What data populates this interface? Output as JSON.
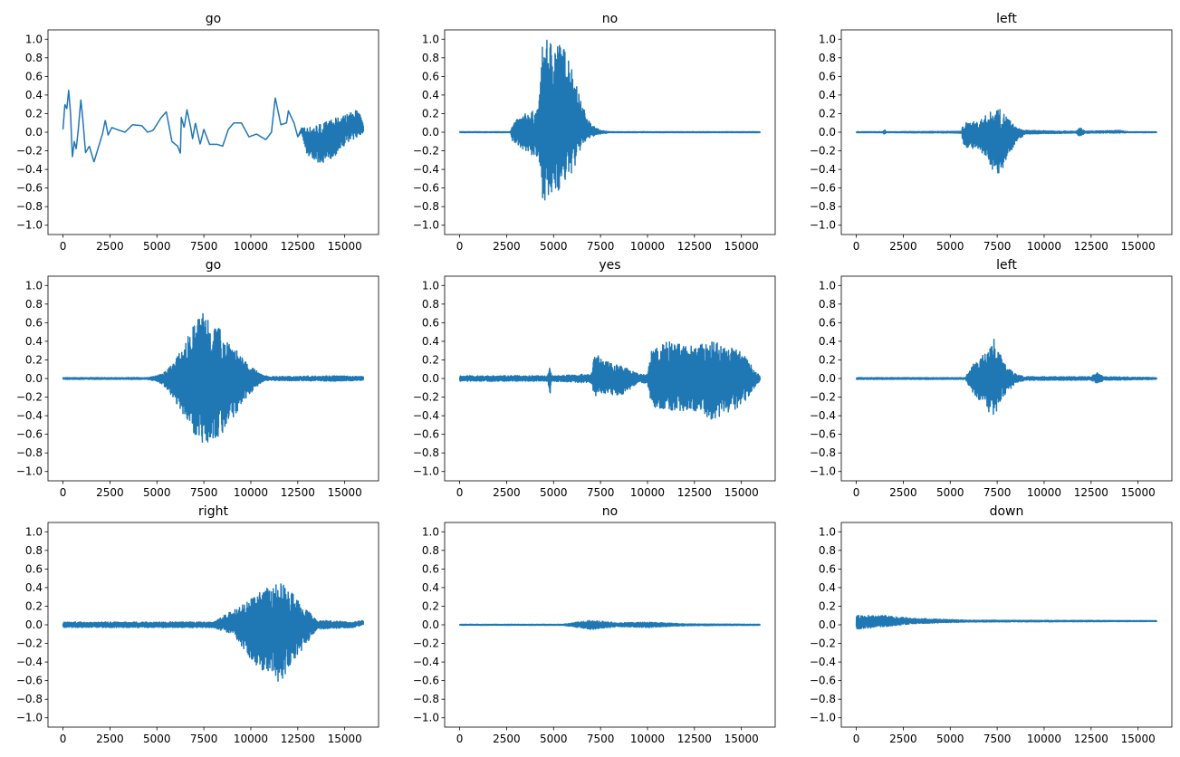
{
  "chart_data": [
    {
      "type": "line",
      "title": "go",
      "xlim": [
        -800,
        16800
      ],
      "ylim": [
        -1.1,
        1.1
      ],
      "grid": false,
      "color": "#1f77b4",
      "envelope": [
        [
          0,
          0.03,
          0.03
        ],
        [
          100,
          0.3,
          0.3
        ],
        [
          200,
          0.25,
          0.25
        ],
        [
          300,
          0.45,
          0.45
        ],
        [
          400,
          0.2,
          0.2
        ],
        [
          500,
          -0.27,
          -0.27
        ],
        [
          600,
          -0.1,
          -0.1
        ],
        [
          700,
          -0.18,
          -0.18
        ],
        [
          800,
          0,
          0
        ],
        [
          950,
          0.35,
          0.35
        ],
        [
          1050,
          0.15,
          0.15
        ],
        [
          1200,
          -0.22,
          -0.22
        ],
        [
          1400,
          -0.15,
          -0.15
        ],
        [
          1650,
          -0.32,
          -0.32
        ],
        [
          1900,
          -0.15,
          -0.15
        ],
        [
          2100,
          -0.02,
          -0.02
        ],
        [
          2250,
          0.13,
          0.13
        ],
        [
          2400,
          -0.03,
          -0.03
        ],
        [
          2600,
          0.05,
          0.05
        ],
        [
          3000,
          0.02,
          0.02
        ],
        [
          3300,
          0,
          0
        ],
        [
          3700,
          0.08,
          0.08
        ],
        [
          4200,
          0.07,
          0.07
        ],
        [
          4500,
          0,
          0
        ],
        [
          4800,
          0.02,
          0.02
        ],
        [
          5200,
          0.15,
          0.15
        ],
        [
          5500,
          0.22,
          0.22
        ],
        [
          5800,
          -0.1,
          -0.1
        ],
        [
          6100,
          -0.15,
          -0.15
        ],
        [
          6250,
          -0.23,
          -0.23
        ],
        [
          6300,
          0.16,
          0.16
        ],
        [
          6450,
          0.05,
          0.05
        ],
        [
          6600,
          0.24,
          0.24
        ],
        [
          6800,
          0.05,
          0.05
        ],
        [
          6900,
          -0.07,
          -0.07
        ],
        [
          7050,
          0.1,
          0.1
        ],
        [
          7300,
          -0.13,
          -0.13
        ],
        [
          7500,
          0.03,
          0.03
        ],
        [
          7800,
          -0.13,
          -0.13
        ],
        [
          8200,
          -0.13,
          -0.13
        ],
        [
          8500,
          -0.15,
          -0.15
        ],
        [
          8800,
          0.03,
          0.03
        ],
        [
          9100,
          0.1,
          0.1
        ],
        [
          9500,
          0.1,
          0.1
        ],
        [
          9900,
          -0.05,
          -0.05
        ],
        [
          10300,
          -0.02,
          -0.02
        ],
        [
          10800,
          -0.08,
          -0.08
        ],
        [
          11100,
          0,
          0
        ],
        [
          11300,
          0.37,
          0.37
        ],
        [
          11600,
          0.08,
          0.08
        ],
        [
          11900,
          0.1,
          0.1
        ],
        [
          12000,
          0.23,
          0.23
        ],
        [
          12300,
          0.1,
          0.1
        ],
        [
          12500,
          -0.05,
          -0.05
        ],
        [
          12700,
          0.05,
          0.0
        ],
        [
          13000,
          0.05,
          -0.25
        ],
        [
          13800,
          0.1,
          -0.35
        ],
        [
          14500,
          0.15,
          -0.25
        ],
        [
          15200,
          0.2,
          -0.1
        ],
        [
          15700,
          0.25,
          -0.05
        ],
        [
          16000,
          0.08,
          0.0
        ]
      ]
    },
    {
      "type": "line",
      "title": "no",
      "xlim": [
        -800,
        16800
      ],
      "ylim": [
        -1.1,
        1.1
      ],
      "grid": false,
      "color": "#1f77b4",
      "envelope": [
        [
          0,
          0.005,
          -0.005
        ],
        [
          2700,
          0.005,
          -0.005
        ],
        [
          2800,
          0.1,
          -0.1
        ],
        [
          3500,
          0.2,
          -0.2
        ],
        [
          4200,
          0.25,
          -0.3
        ],
        [
          4400,
          0.95,
          -0.7
        ],
        [
          4700,
          1.0,
          -0.78
        ],
        [
          5200,
          1.0,
          -0.65
        ],
        [
          5800,
          0.85,
          -0.5
        ],
        [
          6100,
          0.6,
          -0.4
        ],
        [
          6500,
          0.3,
          -0.15
        ],
        [
          7000,
          0.08,
          -0.05
        ],
        [
          7500,
          0.02,
          -0.02
        ],
        [
          8000,
          0.005,
          -0.005
        ],
        [
          16000,
          0.005,
          -0.005
        ]
      ]
    },
    {
      "type": "line",
      "title": "left",
      "xlim": [
        -800,
        16800
      ],
      "ylim": [
        -1.1,
        1.1
      ],
      "grid": false,
      "color": "#1f77b4",
      "envelope": [
        [
          0,
          0.005,
          -0.005
        ],
        [
          1400,
          0.005,
          -0.005
        ],
        [
          1500,
          0.03,
          -0.03
        ],
        [
          1600,
          0.005,
          -0.005
        ],
        [
          5600,
          0.01,
          -0.01
        ],
        [
          5700,
          0.1,
          -0.15
        ],
        [
          6500,
          0.12,
          -0.2
        ],
        [
          7000,
          0.2,
          -0.3
        ],
        [
          7500,
          0.27,
          -0.5
        ],
        [
          8000,
          0.18,
          -0.3
        ],
        [
          8500,
          0.05,
          -0.1
        ],
        [
          9000,
          0.02,
          -0.02
        ],
        [
          11700,
          0.01,
          -0.01
        ],
        [
          11900,
          0.05,
          -0.05
        ],
        [
          12200,
          0.01,
          -0.01
        ],
        [
          14000,
          0.02,
          -0.01
        ],
        [
          14500,
          0.005,
          -0.005
        ],
        [
          16000,
          0.005,
          -0.005
        ]
      ]
    },
    {
      "type": "line",
      "title": "go",
      "xlim": [
        -800,
        16800
      ],
      "ylim": [
        -1.1,
        1.1
      ],
      "grid": false,
      "color": "#1f77b4",
      "envelope": [
        [
          0,
          0.01,
          -0.01
        ],
        [
          4500,
          0.01,
          -0.01
        ],
        [
          5000,
          0.03,
          -0.03
        ],
        [
          5500,
          0.08,
          -0.1
        ],
        [
          6300,
          0.3,
          -0.35
        ],
        [
          7000,
          0.6,
          -0.6
        ],
        [
          7500,
          0.75,
          -0.72
        ],
        [
          8500,
          0.5,
          -0.6
        ],
        [
          9000,
          0.4,
          -0.45
        ],
        [
          9600,
          0.2,
          -0.25
        ],
        [
          10500,
          0.05,
          -0.05
        ],
        [
          11000,
          0.02,
          -0.02
        ],
        [
          14500,
          0.03,
          -0.03
        ],
        [
          16000,
          0.02,
          -0.02
        ]
      ]
    },
    {
      "type": "line",
      "title": "yes",
      "xlim": [
        -800,
        16800
      ],
      "ylim": [
        -1.1,
        1.1
      ],
      "grid": false,
      "color": "#1f77b4",
      "envelope": [
        [
          0,
          0.03,
          -0.03
        ],
        [
          4700,
          0.03,
          -0.03
        ],
        [
          4800,
          0.17,
          -0.23
        ],
        [
          4900,
          0.03,
          -0.03
        ],
        [
          7000,
          0.05,
          -0.05
        ],
        [
          7200,
          0.28,
          -0.2
        ],
        [
          7600,
          0.2,
          -0.15
        ],
        [
          8500,
          0.15,
          -0.2
        ],
        [
          9500,
          0.05,
          -0.05
        ],
        [
          10000,
          0.05,
          -0.05
        ],
        [
          10200,
          0.3,
          -0.3
        ],
        [
          11000,
          0.4,
          -0.35
        ],
        [
          12500,
          0.35,
          -0.35
        ],
        [
          13500,
          0.4,
          -0.45
        ],
        [
          15000,
          0.3,
          -0.3
        ],
        [
          16000,
          0.02,
          -0.02
        ]
      ]
    },
    {
      "type": "line",
      "title": "left",
      "xlim": [
        -800,
        16800
      ],
      "ylim": [
        -1.1,
        1.1
      ],
      "grid": false,
      "color": "#1f77b4",
      "envelope": [
        [
          0,
          0.01,
          -0.01
        ],
        [
          5800,
          0.01,
          -0.01
        ],
        [
          6200,
          0.15,
          -0.15
        ],
        [
          7000,
          0.3,
          -0.35
        ],
        [
          7300,
          0.45,
          -0.43
        ],
        [
          7800,
          0.2,
          -0.2
        ],
        [
          8500,
          0.05,
          -0.05
        ],
        [
          9000,
          0.02,
          -0.02
        ],
        [
          12500,
          0.02,
          -0.02
        ],
        [
          12800,
          0.07,
          -0.05
        ],
        [
          13200,
          0.02,
          -0.02
        ],
        [
          16000,
          0.01,
          -0.01
        ]
      ]
    },
    {
      "type": "line",
      "title": "right",
      "xlim": [
        -800,
        16800
      ],
      "ylim": [
        -1.1,
        1.1
      ],
      "grid": false,
      "color": "#1f77b4",
      "envelope": [
        [
          0,
          0.03,
          -0.03
        ],
        [
          8000,
          0.03,
          -0.03
        ],
        [
          9000,
          0.15,
          -0.1
        ],
        [
          10500,
          0.35,
          -0.5
        ],
        [
          11500,
          0.47,
          -0.63
        ],
        [
          12500,
          0.3,
          -0.35
        ],
        [
          13500,
          0.05,
          -0.05
        ],
        [
          15500,
          0.03,
          -0.03
        ],
        [
          16000,
          0.05,
          0.0
        ]
      ]
    },
    {
      "type": "line",
      "title": "no",
      "xlim": [
        -800,
        16800
      ],
      "ylim": [
        -1.1,
        1.1
      ],
      "grid": false,
      "color": "#1f77b4",
      "envelope": [
        [
          0,
          0.005,
          -0.005
        ],
        [
          5500,
          0.005,
          -0.005
        ],
        [
          7000,
          0.05,
          -0.05
        ],
        [
          8500,
          0.02,
          -0.02
        ],
        [
          10000,
          0.03,
          -0.03
        ],
        [
          12000,
          0.01,
          -0.01
        ],
        [
          16000,
          0.005,
          -0.005
        ]
      ]
    },
    {
      "type": "line",
      "title": "down",
      "xlim": [
        -800,
        16800
      ],
      "ylim": [
        -1.1,
        1.1
      ],
      "grid": false,
      "color": "#1f77b4",
      "envelope": [
        [
          0,
          0.1,
          -0.05
        ],
        [
          1500,
          0.1,
          -0.02
        ],
        [
          3000,
          0.07,
          0.01
        ],
        [
          6000,
          0.05,
          0.03
        ],
        [
          16000,
          0.045,
          0.035
        ]
      ]
    }
  ],
  "x_ticks": [
    "0",
    "2500",
    "5000",
    "7500",
    "10000",
    "12500",
    "15000"
  ],
  "y_ticks": [
    "−1.0",
    "−0.8",
    "−0.6",
    "−0.4",
    "−0.2",
    "0.0",
    "0.2",
    "0.4",
    "0.6",
    "0.8",
    "1.0"
  ]
}
